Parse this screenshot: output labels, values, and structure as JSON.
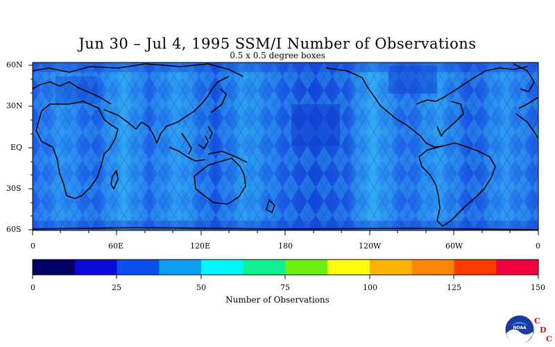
{
  "title": "Jun 30 – Jul 4, 1995 SSM/I Number of Observations",
  "subtitle": "0.5 x 0.5 degree boxes",
  "lat_labels": [
    "60N",
    "30N",
    "EQ",
    "30S",
    "60S"
  ],
  "lon_labels": [
    "0",
    "60E",
    "120E",
    "180",
    "120W",
    "60W",
    "0"
  ],
  "colorbar": {
    "title": "Number of Observations",
    "tick_labels": [
      "0",
      "25",
      "50",
      "75",
      "100",
      "125",
      "150"
    ],
    "colors": [
      "#000066",
      "#0a0ad8",
      "#0a50f0",
      "#0a9ef0",
      "#00f6f8",
      "#10f090",
      "#70f010",
      "#fcfc08",
      "#fcb200",
      "#fc8600",
      "#fc3c00",
      "#f0003c"
    ]
  },
  "logo": {
    "emblem_text": "NOAA",
    "letters": [
      "C",
      "D",
      "C"
    ]
  }
}
